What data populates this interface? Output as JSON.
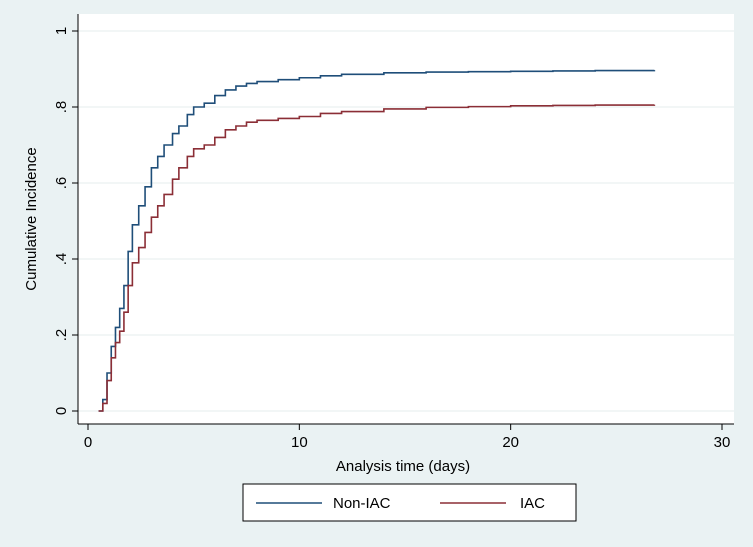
{
  "chart_data": {
    "type": "line",
    "xlabel": "Analysis time (days)",
    "ylabel": "Cumulative Incidence",
    "xlim": [
      0,
      30
    ],
    "ylim": [
      0,
      1
    ],
    "xticks": [
      0,
      10,
      20,
      30
    ],
    "xtick_labels": [
      "0",
      "10",
      "20",
      "30"
    ],
    "yticks": [
      0,
      0.2,
      0.4,
      0.6,
      0.8,
      1
    ],
    "ytick_labels": [
      "0",
      ".2",
      ".4",
      ".6",
      ".8",
      "1"
    ],
    "grid": true,
    "legend_position": "bottom",
    "series": [
      {
        "name": "Non-IAC",
        "color": "#1f4e79",
        "x": [
          0.5,
          0.7,
          0.9,
          1.1,
          1.3,
          1.5,
          1.7,
          1.9,
          2.1,
          2.4,
          2.7,
          3.0,
          3.3,
          3.6,
          4.0,
          4.3,
          4.7,
          5.0,
          5.5,
          6.0,
          6.5,
          7.0,
          7.5,
          8.0,
          9.0,
          10.0,
          11.0,
          12.0,
          14.0,
          16.0,
          18.0,
          20.0,
          22.0,
          24.0,
          26.8
        ],
        "y": [
          0.0,
          0.03,
          0.1,
          0.17,
          0.22,
          0.27,
          0.33,
          0.42,
          0.49,
          0.54,
          0.59,
          0.64,
          0.67,
          0.7,
          0.73,
          0.75,
          0.78,
          0.8,
          0.81,
          0.83,
          0.845,
          0.855,
          0.862,
          0.867,
          0.872,
          0.877,
          0.882,
          0.886,
          0.89,
          0.892,
          0.893,
          0.894,
          0.895,
          0.896,
          0.897
        ]
      },
      {
        "name": "IAC",
        "color": "#8b2e36",
        "x": [
          0.5,
          0.7,
          0.9,
          1.1,
          1.3,
          1.5,
          1.7,
          1.9,
          2.1,
          2.4,
          2.7,
          3.0,
          3.3,
          3.6,
          4.0,
          4.3,
          4.7,
          5.0,
          5.5,
          6.0,
          6.5,
          7.0,
          7.5,
          8.0,
          9.0,
          10.0,
          11.0,
          12.0,
          14.0,
          16.0,
          18.0,
          20.0,
          22.0,
          24.0,
          26.8
        ],
        "y": [
          0.0,
          0.02,
          0.08,
          0.14,
          0.18,
          0.21,
          0.26,
          0.33,
          0.39,
          0.43,
          0.47,
          0.51,
          0.54,
          0.57,
          0.61,
          0.64,
          0.67,
          0.69,
          0.7,
          0.72,
          0.74,
          0.75,
          0.76,
          0.765,
          0.77,
          0.775,
          0.783,
          0.788,
          0.795,
          0.799,
          0.801,
          0.803,
          0.804,
          0.805,
          0.806
        ]
      }
    ]
  }
}
